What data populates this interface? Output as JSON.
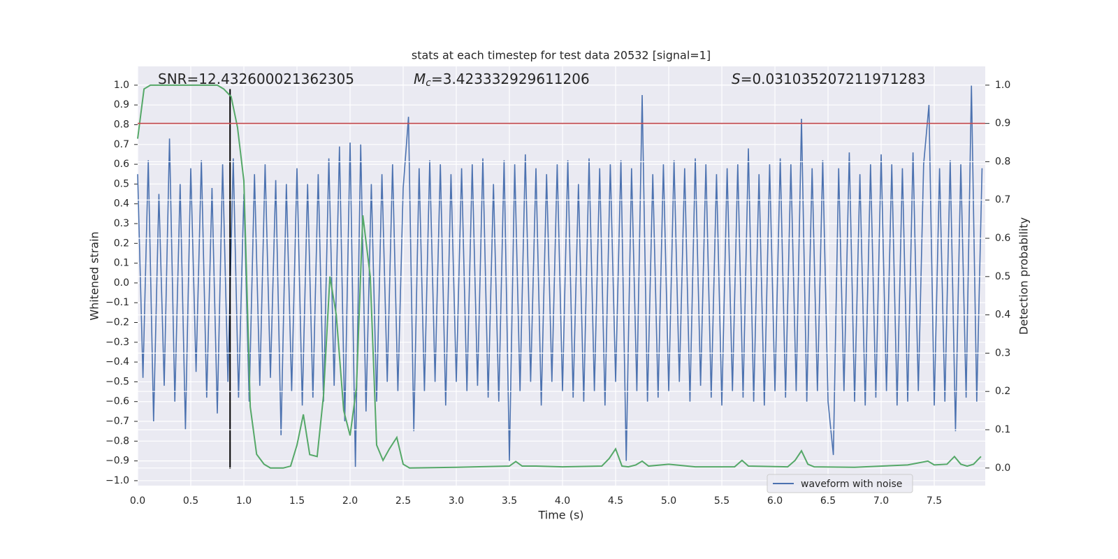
{
  "chart_data": {
    "type": "line",
    "title": "stats at each timestep for test data 20532 [signal=1]",
    "xlabel": "Time (s)",
    "ylabel": "Whitened strain",
    "y2label": "Detection probability",
    "annotations": [
      {
        "text": "SNR=12.432600021362305"
      },
      {
        "symbol": "M",
        "subscript": "c",
        "text": "=3.423332929611206"
      },
      {
        "symbol": "S",
        "text": "=0.031035207211971283"
      }
    ],
    "xlim": [
      0,
      7.98
    ],
    "ylim": [
      -1.025,
      1.095
    ],
    "y2lim": [
      -0.046,
      1.049
    ],
    "xticks": [
      {
        "value": 0,
        "label": "0.0"
      },
      {
        "value": 0.5,
        "label": "0.5"
      },
      {
        "value": 1,
        "label": "1.0"
      },
      {
        "value": 1.5,
        "label": "1.5"
      },
      {
        "value": 2,
        "label": "2.0"
      },
      {
        "value": 2.5,
        "label": "2.5"
      },
      {
        "value": 3,
        "label": "3.0"
      },
      {
        "value": 3.5,
        "label": "3.5"
      },
      {
        "value": 4,
        "label": "4.0"
      },
      {
        "value": 4.5,
        "label": "4.5"
      },
      {
        "value": 5,
        "label": "5.0"
      },
      {
        "value": 5.5,
        "label": "5.5"
      },
      {
        "value": 6,
        "label": "6.0"
      },
      {
        "value": 6.5,
        "label": "6.5"
      },
      {
        "value": 7,
        "label": "7.0"
      },
      {
        "value": 7.5,
        "label": "7.5"
      }
    ],
    "yticks": [
      {
        "value": -1,
        "label": "−1.0"
      },
      {
        "value": -0.9,
        "label": "−0.9"
      },
      {
        "value": -0.8,
        "label": "−0.8"
      },
      {
        "value": -0.7,
        "label": "−0.7"
      },
      {
        "value": -0.6,
        "label": "−0.6"
      },
      {
        "value": -0.5,
        "label": "−0.5"
      },
      {
        "value": -0.4,
        "label": "−0.4"
      },
      {
        "value": -0.3,
        "label": "−0.3"
      },
      {
        "value": -0.2,
        "label": "−0.2"
      },
      {
        "value": -0.1,
        "label": "−0.1"
      },
      {
        "value": 0,
        "label": "0.0"
      },
      {
        "value": 0.1,
        "label": "0.1"
      },
      {
        "value": 0.2,
        "label": "0.2"
      },
      {
        "value": 0.3,
        "label": "0.3"
      },
      {
        "value": 0.4,
        "label": "0.4"
      },
      {
        "value": 0.5,
        "label": "0.5"
      },
      {
        "value": 0.6,
        "label": "0.6"
      },
      {
        "value": 0.7,
        "label": "0.7"
      },
      {
        "value": 0.8,
        "label": "0.8"
      },
      {
        "value": 0.9,
        "label": "0.9"
      },
      {
        "value": 1,
        "label": "1.0"
      }
    ],
    "y2ticks": [
      {
        "value": 0,
        "label": "0.0"
      },
      {
        "value": 0.1,
        "label": "0.1"
      },
      {
        "value": 0.2,
        "label": "0.2"
      },
      {
        "value": 0.3,
        "label": "0.3"
      },
      {
        "value": 0.4,
        "label": "0.4"
      },
      {
        "value": 0.5,
        "label": "0.5"
      },
      {
        "value": 0.6,
        "label": "0.6"
      },
      {
        "value": 0.7,
        "label": "0.7"
      },
      {
        "value": 0.8,
        "label": "0.8"
      },
      {
        "value": 0.9,
        "label": "0.9"
      },
      {
        "value": 1,
        "label": "1.0"
      }
    ],
    "grid": true,
    "legend": "lower right",
    "series": [
      {
        "name": "waveform with noise",
        "color": "#4c72b0",
        "x": [
          0,
          0.05,
          0.1,
          0.15,
          0.2,
          0.25,
          0.3,
          0.35,
          0.4,
          0.45,
          0.5,
          0.55,
          0.6,
          0.65,
          0.7,
          0.75,
          0.8,
          0.85,
          0.9,
          0.95,
          1,
          1.05,
          1.1,
          1.15,
          1.2,
          1.25,
          1.3,
          1.35,
          1.4,
          1.45,
          1.5,
          1.55,
          1.6,
          1.65,
          1.7,
          1.75,
          1.8,
          1.85,
          1.9,
          1.95,
          2,
          2.05,
          2.1,
          2.15,
          2.2,
          2.25,
          2.3,
          2.35,
          2.4,
          2.45,
          2.5,
          2.55,
          2.6,
          2.65,
          2.7,
          2.75,
          2.8,
          2.85,
          2.9,
          2.95,
          3,
          3.05,
          3.1,
          3.15,
          3.2,
          3.25,
          3.3,
          3.35,
          3.4,
          3.45,
          3.5,
          3.55,
          3.6,
          3.65,
          3.7,
          3.75,
          3.8,
          3.85,
          3.9,
          3.95,
          4,
          4.05,
          4.1,
          4.15,
          4.2,
          4.25,
          4.3,
          4.35,
          4.4,
          4.45,
          4.5,
          4.55,
          4.6,
          4.65,
          4.7,
          4.75,
          4.8,
          4.85,
          4.9,
          4.95,
          5,
          5.05,
          5.1,
          5.15,
          5.2,
          5.25,
          5.3,
          5.35,
          5.4,
          5.45,
          5.5,
          5.55,
          5.6,
          5.65,
          5.7,
          5.75,
          5.8,
          5.85,
          5.9,
          5.95,
          6,
          6.05,
          6.1,
          6.15,
          6.2,
          6.25,
          6.3,
          6.35,
          6.4,
          6.45,
          6.5,
          6.55,
          6.6,
          6.65,
          6.7,
          6.75,
          6.8,
          6.85,
          6.9,
          6.95,
          7,
          7.05,
          7.1,
          7.15,
          7.2,
          7.25,
          7.3,
          7.35,
          7.4,
          7.45,
          7.5,
          7.55,
          7.6,
          7.65,
          7.7,
          7.75,
          7.8,
          7.85,
          7.9,
          7.95
        ],
        "values": [
          0.55,
          -0.48,
          0.62,
          -0.7,
          0.45,
          -0.52,
          0.73,
          -0.6,
          0.5,
          -0.74,
          0.58,
          -0.45,
          0.62,
          -0.58,
          0.48,
          -0.66,
          0.6,
          -0.5,
          0.63,
          -0.58,
          0.45,
          -0.6,
          0.55,
          -0.52,
          0.6,
          -0.48,
          0.52,
          -0.77,
          0.5,
          -0.55,
          0.58,
          -0.62,
          0.5,
          -0.58,
          0.55,
          -0.6,
          0.63,
          -0.52,
          0.69,
          -0.7,
          0.71,
          -0.93,
          0.7,
          -0.65,
          0.5,
          -0.6,
          0.55,
          -0.5,
          0.6,
          -0.55,
          0.48,
          0.84,
          -0.75,
          0.58,
          -0.55,
          0.62,
          -0.5,
          0.6,
          -0.62,
          0.55,
          -0.5,
          0.58,
          -0.55,
          0.6,
          -0.52,
          0.63,
          -0.58,
          0.5,
          -0.6,
          0.62,
          -0.9,
          0.6,
          -0.55,
          0.65,
          -0.5,
          0.58,
          -0.62,
          0.55,
          -0.5,
          0.6,
          -0.55,
          0.62,
          -0.58,
          0.5,
          -0.6,
          0.63,
          -0.55,
          0.58,
          -0.62,
          0.6,
          -0.5,
          0.62,
          -0.9,
          0.58,
          -0.55,
          0.95,
          -0.6,
          0.55,
          -0.58,
          0.6,
          -0.55,
          0.62,
          -0.5,
          0.58,
          -0.6,
          0.63,
          -0.52,
          0.6,
          -0.58,
          0.55,
          -0.62,
          0.58,
          -0.55,
          0.6,
          -0.58,
          0.68,
          -0.6,
          0.55,
          -0.62,
          0.6,
          -0.55,
          0.63,
          -0.58,
          0.6,
          -0.55,
          0.83,
          -0.6,
          0.58,
          -0.55,
          0.62,
          -0.6,
          -0.87,
          0.58,
          -0.55,
          0.66,
          -0.6,
          0.55,
          -0.62,
          0.6,
          -0.58,
          0.65,
          -0.55,
          0.6,
          -0.62,
          0.58,
          -0.6,
          0.66,
          -0.55,
          0.6,
          0.9,
          -0.62,
          0.58,
          -0.6,
          0.62,
          -0.75,
          0.6,
          -0.58,
          1.0,
          -0.6,
          0.58
        ]
      },
      {
        "color": "#55a868",
        "axis": "y2",
        "x": [
          0,
          0.06,
          0.12,
          0.19,
          0.25,
          0.5,
          0.75,
          0.81,
          0.88,
          0.94,
          1.0,
          1.06,
          1.12,
          1.19,
          1.25,
          1.31,
          1.37,
          1.44,
          1.5,
          1.56,
          1.62,
          1.69,
          1.75,
          1.81,
          1.87,
          1.94,
          2.0,
          2.06,
          2.12,
          2.19,
          2.25,
          2.31,
          2.37,
          2.44,
          2.5,
          2.56,
          3.0,
          3.5,
          3.56,
          3.62,
          3.75,
          4.0,
          4.37,
          4.44,
          4.5,
          4.56,
          4.62,
          4.69,
          4.75,
          4.81,
          5.0,
          5.25,
          5.62,
          5.69,
          5.75,
          6.12,
          6.19,
          6.25,
          6.31,
          6.37,
          6.75,
          7.25,
          7.44,
          7.5,
          7.62,
          7.69,
          7.75,
          7.81,
          7.87,
          7.94
        ],
        "values": [
          0.86,
          0.99,
          1.0,
          1.0,
          1.0,
          1.0,
          1.0,
          0.99,
          0.97,
          0.89,
          0.75,
          0.16,
          0.036,
          0.01,
          0.0,
          0.0,
          0.0,
          0.005,
          0.06,
          0.14,
          0.035,
          0.03,
          0.19,
          0.5,
          0.4,
          0.15,
          0.085,
          0.21,
          0.66,
          0.5,
          0.06,
          0.02,
          0.05,
          0.08,
          0.01,
          0.0,
          0.002,
          0.005,
          0.017,
          0.005,
          0.005,
          0.003,
          0.005,
          0.025,
          0.05,
          0.005,
          0.003,
          0.008,
          0.018,
          0.005,
          0.01,
          0.003,
          0.003,
          0.02,
          0.005,
          0.003,
          0.02,
          0.045,
          0.01,
          0.003,
          0.002,
          0.008,
          0.018,
          0.008,
          0.01,
          0.03,
          0.01,
          0.005,
          0.01,
          0.03
        ]
      }
    ],
    "vline": {
      "x": 0.87,
      "ymin": -0.94,
      "ymax": 0.98,
      "color": "#000000"
    },
    "hline": {
      "y": 0.9,
      "axis": "y2",
      "color": "#c44e52"
    }
  }
}
